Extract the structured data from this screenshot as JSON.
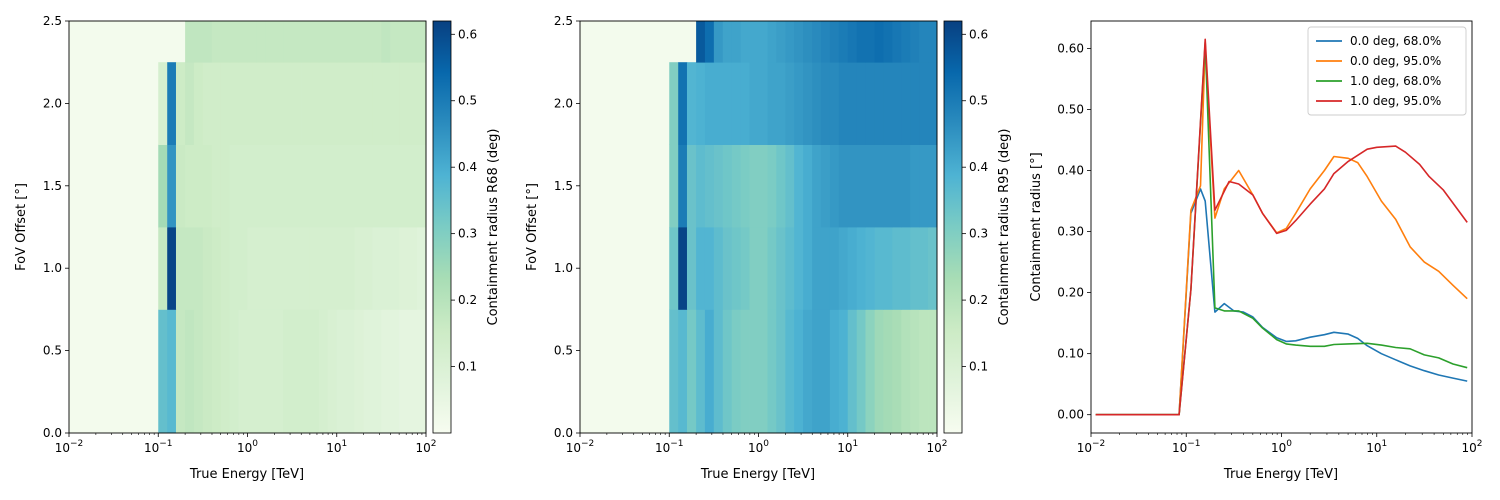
{
  "chart_data": [
    {
      "type": "heatmap",
      "xlabel": "True Energy [TeV]",
      "ylabel": "FoV Offset [°]",
      "x_scale": "log",
      "xlim": [
        0.01,
        100
      ],
      "ylim": [
        0,
        2.5
      ],
      "x_ticks": [
        {
          "value": 0.01,
          "base": "10",
          "exp": "−2"
        },
        {
          "value": 0.1,
          "base": "10",
          "exp": "−1"
        },
        {
          "value": 1,
          "base": "10",
          "exp": "0"
        },
        {
          "value": 10,
          "base": "10",
          "exp": "1"
        },
        {
          "value": 100,
          "base": "10",
          "exp": "2"
        }
      ],
      "y_ticks": [
        "0.0",
        "0.5",
        "1.0",
        "1.5",
        "2.0",
        "2.5"
      ],
      "colorbar": {
        "label": "Containment radius R68 (deg)",
        "range": [
          0.0,
          0.62
        ],
        "ticks": [
          "0.1",
          "0.2",
          "0.3",
          "0.4",
          "0.5",
          "0.6"
        ],
        "colormap": "GnBu"
      },
      "energy_edges": [
        0.1,
        0.126,
        0.158,
        0.2,
        0.251,
        0.316,
        0.398,
        0.501,
        0.631,
        0.794,
        1.0,
        1.26,
        1.58,
        2.0,
        2.51,
        3.16,
        3.98,
        5.01,
        6.31,
        7.94,
        10.0,
        12.6,
        15.8,
        20.0,
        25.1,
        31.6,
        39.8,
        50.1,
        63.1,
        79.4,
        100.0
      ],
      "offset_edges": [
        0.0,
        0.75,
        1.25,
        1.75,
        2.25,
        2.5
      ],
      "rows": [
        {
          "offset": "0.0–0.75",
          "values": [
            0.35,
            0.37,
            0.17,
            0.18,
            0.17,
            0.16,
            0.15,
            0.14,
            0.13,
            0.12,
            0.12,
            0.12,
            0.12,
            0.12,
            0.13,
            0.13,
            0.13,
            0.13,
            0.12,
            0.11,
            0.1,
            0.1,
            0.09,
            0.08,
            0.08,
            0.07,
            0.07,
            0.06,
            0.06,
            0.06
          ]
        },
        {
          "offset": "0.75–1.25",
          "values": [
            0.17,
            0.61,
            0.17,
            0.17,
            0.17,
            0.16,
            0.15,
            0.14,
            0.13,
            0.13,
            0.12,
            0.12,
            0.12,
            0.12,
            0.12,
            0.12,
            0.12,
            0.12,
            0.12,
            0.12,
            0.12,
            0.12,
            0.11,
            0.11,
            0.1,
            0.1,
            0.1,
            0.09,
            0.09,
            0.08
          ]
        },
        {
          "offset": "1.25–1.75",
          "values": [
            0.24,
            0.45,
            0.16,
            0.15,
            0.15,
            0.15,
            0.14,
            0.14,
            0.13,
            0.13,
            0.13,
            0.13,
            0.13,
            0.13,
            0.13,
            0.13,
            0.13,
            0.13,
            0.13,
            0.13,
            0.13,
            0.13,
            0.13,
            0.13,
            0.13,
            0.13,
            0.13,
            0.13,
            0.13,
            0.13
          ]
        },
        {
          "offset": "1.75–2.25",
          "values": [
            0.12,
            0.5,
            0.15,
            0.17,
            0.15,
            0.14,
            0.14,
            0.14,
            0.14,
            0.14,
            0.14,
            0.14,
            0.14,
            0.14,
            0.14,
            0.14,
            0.14,
            0.14,
            0.14,
            0.14,
            0.14,
            0.14,
            0.14,
            0.14,
            0.14,
            0.14,
            0.14,
            0.14,
            0.14,
            0.14
          ]
        },
        {
          "offset": "2.25–2.5",
          "values": [
            null,
            null,
            null,
            0.18,
            0.18,
            0.18,
            0.17,
            0.17,
            0.17,
            0.17,
            0.17,
            0.17,
            0.17,
            0.17,
            0.17,
            0.17,
            0.17,
            0.17,
            0.17,
            0.17,
            0.17,
            0.17,
            0.17,
            0.17,
            0.17,
            0.18,
            0.17,
            0.17,
            0.17,
            0.17
          ]
        }
      ]
    },
    {
      "type": "heatmap",
      "xlabel": "True Energy [TeV]",
      "ylabel": "FoV Offset [°]",
      "x_scale": "log",
      "xlim": [
        0.01,
        100
      ],
      "ylim": [
        0,
        2.5
      ],
      "x_ticks": [
        {
          "value": 0.01,
          "base": "10",
          "exp": "−2"
        },
        {
          "value": 0.1,
          "base": "10",
          "exp": "−1"
        },
        {
          "value": 1,
          "base": "10",
          "exp": "0"
        },
        {
          "value": 10,
          "base": "10",
          "exp": "1"
        },
        {
          "value": 100,
          "base": "10",
          "exp": "2"
        }
      ],
      "y_ticks": [
        "0.0",
        "0.5",
        "1.0",
        "1.5",
        "2.0",
        "2.5"
      ],
      "colorbar": {
        "label": "Containment radius R95 (deg)",
        "range": [
          0.0,
          0.62
        ],
        "ticks": [
          "0.1",
          "0.2",
          "0.3",
          "0.4",
          "0.5",
          "0.6"
        ],
        "colormap": "GnBu"
      },
      "energy_edges": [
        0.1,
        0.126,
        0.158,
        0.2,
        0.251,
        0.316,
        0.398,
        0.501,
        0.631,
        0.794,
        1.0,
        1.26,
        1.58,
        2.0,
        2.51,
        3.16,
        3.98,
        5.01,
        6.31,
        7.94,
        10.0,
        12.6,
        15.8,
        20.0,
        25.1,
        31.6,
        39.8,
        50.1,
        63.1,
        79.4,
        100.0
      ],
      "offset_edges": [
        0.0,
        0.75,
        1.25,
        1.75,
        2.25,
        2.5
      ],
      "rows": [
        {
          "offset": "0.0–0.75",
          "values": [
            0.35,
            0.37,
            0.32,
            0.36,
            0.4,
            0.36,
            0.33,
            0.31,
            0.3,
            0.3,
            0.3,
            0.32,
            0.34,
            0.37,
            0.39,
            0.41,
            0.42,
            0.42,
            0.4,
            0.39,
            0.35,
            0.32,
            0.28,
            0.25,
            0.24,
            0.23,
            0.21,
            0.2,
            0.19,
            0.19
          ]
        },
        {
          "offset": "0.75–1.25",
          "values": [
            0.33,
            0.61,
            0.34,
            0.38,
            0.38,
            0.36,
            0.34,
            0.33,
            0.32,
            0.3,
            0.3,
            0.32,
            0.34,
            0.36,
            0.38,
            0.4,
            0.42,
            0.42,
            0.42,
            0.41,
            0.4,
            0.39,
            0.38,
            0.37,
            0.37,
            0.36,
            0.36,
            0.35,
            0.35,
            0.34
          ]
        },
        {
          "offset": "1.25–1.75",
          "values": [
            0.3,
            0.5,
            0.34,
            0.36,
            0.35,
            0.34,
            0.33,
            0.32,
            0.31,
            0.3,
            0.3,
            0.31,
            0.33,
            0.35,
            0.38,
            0.4,
            0.42,
            0.43,
            0.44,
            0.45,
            0.45,
            0.45,
            0.45,
            0.45,
            0.45,
            0.45,
            0.45,
            0.44,
            0.44,
            0.44
          ]
        },
        {
          "offset": "1.75–2.25",
          "values": [
            0.3,
            0.52,
            0.38,
            0.39,
            0.4,
            0.4,
            0.4,
            0.4,
            0.4,
            0.41,
            0.41,
            0.42,
            0.42,
            0.43,
            0.44,
            0.45,
            0.46,
            0.47,
            0.47,
            0.48,
            0.48,
            0.48,
            0.48,
            0.48,
            0.48,
            0.48,
            0.48,
            0.48,
            0.48,
            0.48
          ]
        },
        {
          "offset": "2.25–2.5",
          "values": [
            null,
            null,
            null,
            0.57,
            0.53,
            0.44,
            0.42,
            0.42,
            0.41,
            0.41,
            0.41,
            0.42,
            0.43,
            0.44,
            0.45,
            0.46,
            0.47,
            0.48,
            0.49,
            0.5,
            0.51,
            0.52,
            0.52,
            0.53,
            0.52,
            0.51,
            0.5,
            0.49,
            0.48,
            0.48
          ]
        }
      ]
    },
    {
      "type": "line",
      "xlabel": "True Energy [TeV]",
      "ylabel": "Containment radius [°]",
      "x_scale": "log",
      "xlim": [
        0.01,
        100
      ],
      "ylim": [
        -0.03,
        0.645
      ],
      "x_ticks": [
        {
          "value": 0.01,
          "base": "10",
          "exp": "−2"
        },
        {
          "value": 0.1,
          "base": "10",
          "exp": "−1"
        },
        {
          "value": 1,
          "base": "10",
          "exp": "0"
        },
        {
          "value": 10,
          "base": "10",
          "exp": "1"
        },
        {
          "value": 100,
          "base": "10",
          "exp": "2"
        }
      ],
      "y_ticks": [
        {
          "value": 0.0,
          "label": "0.00"
        },
        {
          "value": 0.1,
          "label": "0.10"
        },
        {
          "value": 0.2,
          "label": "0.20"
        },
        {
          "value": 0.3,
          "label": "0.30"
        },
        {
          "value": 0.4,
          "label": "0.40"
        },
        {
          "value": 0.5,
          "label": "0.50"
        },
        {
          "value": 0.6,
          "label": "0.60"
        }
      ],
      "legend_position": "top-right",
      "series": [
        {
          "name": "0.0 deg, 68.0%",
          "color": "#1f77b4",
          "points": [
            [
              0.0112,
              0
            ],
            [
              0.0141,
              0
            ],
            [
              0.02,
              0
            ],
            [
              0.04,
              0
            ],
            [
              0.0631,
              0
            ],
            [
              0.0841,
              0
            ],
            [
              0.112,
              0.33
            ],
            [
              0.141,
              0.37
            ],
            [
              0.158,
              0.35
            ],
            [
              0.2,
              0.168
            ],
            [
              0.251,
              0.182
            ],
            [
              0.316,
              0.17
            ],
            [
              0.398,
              0.168
            ],
            [
              0.501,
              0.16
            ],
            [
              0.631,
              0.143
            ],
            [
              0.891,
              0.126
            ],
            [
              1.12,
              0.12
            ],
            [
              1.41,
              0.121
            ],
            [
              2.0,
              0.127
            ],
            [
              2.82,
              0.131
            ],
            [
              3.55,
              0.135
            ],
            [
              5.01,
              0.132
            ],
            [
              6.31,
              0.125
            ],
            [
              7.94,
              0.113
            ],
            [
              11.2,
              0.1
            ],
            [
              15.8,
              0.09
            ],
            [
              22.4,
              0.08
            ],
            [
              31.6,
              0.072
            ],
            [
              44.7,
              0.065
            ],
            [
              63.1,
              0.06
            ],
            [
              89.1,
              0.055
            ]
          ]
        },
        {
          "name": "0.0 deg, 95.0%",
          "color": "#ff7f0e",
          "points": [
            [
              0.0112,
              0
            ],
            [
              0.0141,
              0
            ],
            [
              0.02,
              0
            ],
            [
              0.04,
              0
            ],
            [
              0.0631,
              0
            ],
            [
              0.0841,
              0
            ],
            [
              0.112,
              0.335
            ],
            [
              0.141,
              0.375
            ],
            [
              0.158,
              0.605
            ],
            [
              0.2,
              0.322
            ],
            [
              0.251,
              0.37
            ],
            [
              0.355,
              0.4
            ],
            [
              0.501,
              0.36
            ],
            [
              0.631,
              0.33
            ],
            [
              0.891,
              0.298
            ],
            [
              1.12,
              0.305
            ],
            [
              1.41,
              0.33
            ],
            [
              2.0,
              0.37
            ],
            [
              2.82,
              0.4
            ],
            [
              3.55,
              0.423
            ],
            [
              5.01,
              0.42
            ],
            [
              6.31,
              0.413
            ],
            [
              7.94,
              0.39
            ],
            [
              11.2,
              0.35
            ],
            [
              15.8,
              0.32
            ],
            [
              22.4,
              0.275
            ],
            [
              31.6,
              0.25
            ],
            [
              44.7,
              0.235
            ],
            [
              63.1,
              0.212
            ],
            [
              89.1,
              0.19
            ]
          ]
        },
        {
          "name": "1.0 deg, 68.0%",
          "color": "#2ca02c",
          "points": [
            [
              0.0112,
              0
            ],
            [
              0.0141,
              0
            ],
            [
              0.02,
              0
            ],
            [
              0.04,
              0
            ],
            [
              0.0631,
              0
            ],
            [
              0.0841,
              0
            ],
            [
              0.112,
              0.205
            ],
            [
              0.158,
              0.61
            ],
            [
              0.2,
              0.175
            ],
            [
              0.251,
              0.17
            ],
            [
              0.355,
              0.17
            ],
            [
              0.501,
              0.158
            ],
            [
              0.631,
              0.142
            ],
            [
              0.891,
              0.123
            ],
            [
              1.12,
              0.116
            ],
            [
              1.41,
              0.114
            ],
            [
              2.0,
              0.112
            ],
            [
              2.82,
              0.112
            ],
            [
              3.55,
              0.115
            ],
            [
              5.01,
              0.116
            ],
            [
              7.94,
              0.117
            ],
            [
              11.2,
              0.114
            ],
            [
              15.8,
              0.11
            ],
            [
              22.4,
              0.108
            ],
            [
              31.6,
              0.098
            ],
            [
              44.7,
              0.093
            ],
            [
              63.1,
              0.083
            ],
            [
              89.1,
              0.077
            ]
          ]
        },
        {
          "name": "1.0 deg, 95.0%",
          "color": "#d62728",
          "points": [
            [
              0.0112,
              0
            ],
            [
              0.0141,
              0
            ],
            [
              0.02,
              0
            ],
            [
              0.04,
              0
            ],
            [
              0.0631,
              0
            ],
            [
              0.0841,
              0
            ],
            [
              0.112,
              0.205
            ],
            [
              0.158,
              0.615
            ],
            [
              0.2,
              0.335
            ],
            [
              0.282,
              0.382
            ],
            [
              0.355,
              0.378
            ],
            [
              0.501,
              0.36
            ],
            [
              0.631,
              0.33
            ],
            [
              0.891,
              0.297
            ],
            [
              1.12,
              0.302
            ],
            [
              1.41,
              0.318
            ],
            [
              2.0,
              0.345
            ],
            [
              2.82,
              0.37
            ],
            [
              3.55,
              0.395
            ],
            [
              5.01,
              0.415
            ],
            [
              7.94,
              0.435
            ],
            [
              10.0,
              0.438
            ],
            [
              15.8,
              0.44
            ],
            [
              20.0,
              0.43
            ],
            [
              28.2,
              0.41
            ],
            [
              35.5,
              0.39
            ],
            [
              50.1,
              0.368
            ],
            [
              89.1,
              0.315
            ]
          ]
        }
      ]
    }
  ]
}
